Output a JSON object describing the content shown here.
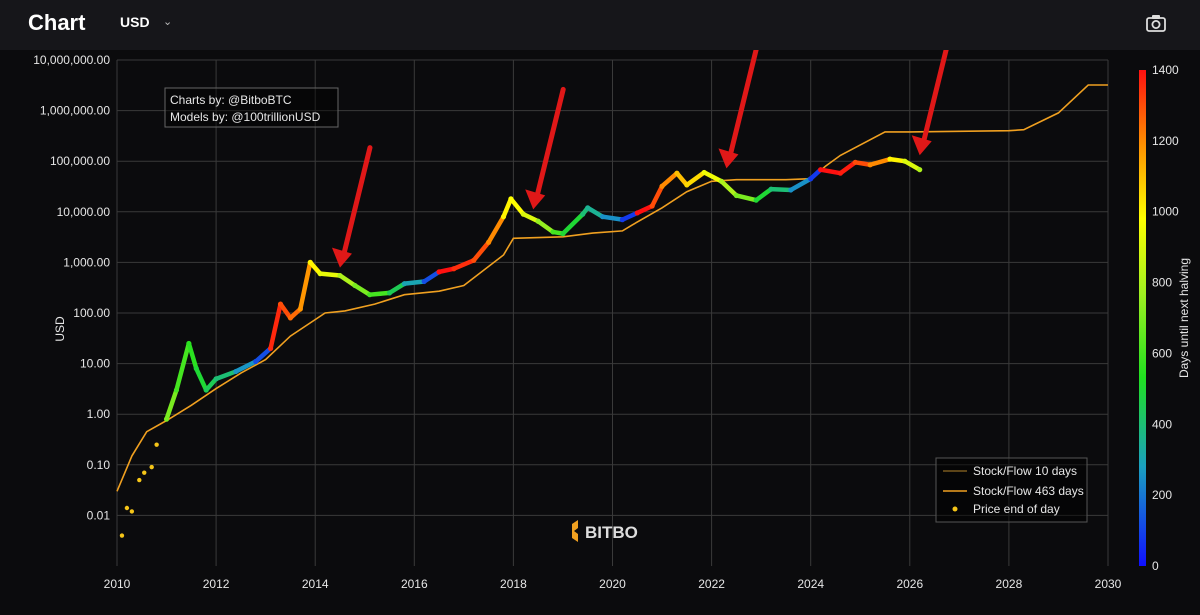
{
  "header": {
    "title": "Chart",
    "currency": "USD",
    "camera_icon": "camera-icon"
  },
  "chart_data": {
    "type": "scatter",
    "yscale": "log",
    "ylabel": "USD",
    "xlim": [
      2010,
      2030
    ],
    "ylim": [
      0.001,
      10000000
    ],
    "y_ticks": [
      "0.01",
      "0.10",
      "1.00",
      "10.00",
      "100.00",
      "1,000.00",
      "10,000.00",
      "100,000.00",
      "1,000,000.00",
      "10,000,000.00"
    ],
    "x_ticks": [
      "2010",
      "2012",
      "2014",
      "2016",
      "2018",
      "2020",
      "2022",
      "2024",
      "2026",
      "2028",
      "2030"
    ],
    "grid": true,
    "annotation": {
      "lines": [
        "Charts by: @BitboBTC",
        "Models by: @100trillionUSD"
      ]
    },
    "watermark": "BITBO",
    "colorbar": {
      "label": "Days until next halving",
      "range": [
        0,
        1400
      ],
      "ticks": [
        "0",
        "200",
        "400",
        "600",
        "800",
        "1000",
        "1200",
        "1400"
      ]
    },
    "legend": {
      "position": "bottom-right",
      "entries": [
        {
          "name": "Stock/Flow 10 days",
          "color": "#7a5a1e"
        },
        {
          "name": "Stock/Flow 463 days",
          "color": "#f0a020"
        },
        {
          "name": "Price end of day",
          "color": "#f5c518"
        }
      ]
    },
    "series": [
      {
        "name": "Stock/Flow 463 days",
        "color": "#f0a020",
        "x": [
          2010.0,
          2010.3,
          2010.6,
          2011.0,
          2011.5,
          2012.0,
          2012.5,
          2013.0,
          2013.5,
          2014.2,
          2014.6,
          2015.2,
          2015.8,
          2016.5,
          2017.0,
          2017.8,
          2018.0,
          2019.0,
          2019.6,
          2020.2,
          2020.4,
          2021.0,
          2021.5,
          2022.0,
          2022.5,
          2023.5,
          2024.0,
          2024.3,
          2024.6,
          2025.5,
          2026.0,
          2027.0,
          2028.0,
          2028.3,
          2029.0,
          2029.6,
          2030.0
        ],
        "y": [
          0.03,
          0.15,
          0.45,
          0.75,
          1.5,
          3.2,
          6.5,
          12,
          35,
          100,
          110,
          150,
          230,
          270,
          350,
          1400,
          3000,
          3200,
          3800,
          4200,
          5500,
          12000,
          25000,
          40000,
          43000,
          43000,
          45000,
          80000,
          130000,
          380000,
          380000,
          390000,
          400000,
          420000,
          900000,
          3200000,
          3200000
        ]
      },
      {
        "name": "Price end of day",
        "color_by": "days_until_next_halving",
        "x": [
          2010.1,
          2010.2,
          2010.3,
          2010.45,
          2010.55,
          2010.7,
          2010.8,
          2011.0,
          2011.2,
          2011.45,
          2011.6,
          2011.8,
          2012.0,
          2012.4,
          2012.8,
          2013.1,
          2013.3,
          2013.5,
          2013.7,
          2013.9,
          2014.1,
          2014.5,
          2014.8,
          2015.1,
          2015.5,
          2015.8,
          2016.2,
          2016.5,
          2016.8,
          2017.2,
          2017.5,
          2017.8,
          2017.95,
          2018.2,
          2018.5,
          2018.8,
          2019.0,
          2019.4,
          2019.5,
          2019.8,
          2020.2,
          2020.5,
          2020.8,
          2021.0,
          2021.3,
          2021.5,
          2021.85,
          2022.2,
          2022.5,
          2022.9,
          2023.2,
          2023.6,
          2024.0,
          2024.2,
          2024.6,
          2024.9,
          2025.2,
          2025.6,
          2025.9,
          2026.2
        ],
        "y": [
          0.004,
          0.014,
          0.012,
          0.05,
          0.07,
          0.09,
          0.25,
          0.8,
          3,
          25,
          8,
          3,
          5,
          7,
          11,
          20,
          150,
          80,
          120,
          1000,
          600,
          550,
          350,
          230,
          250,
          380,
          420,
          650,
          750,
          1100,
          2500,
          8000,
          18000,
          9000,
          6500,
          4000,
          3700,
          9000,
          12000,
          8000,
          7000,
          9500,
          13000,
          32000,
          58000,
          34000,
          60000,
          40000,
          21000,
          17000,
          28000,
          27000,
          45000,
          68000,
          58000,
          95000,
          85000,
          110000,
          100000,
          68000
        ],
        "c": [
          1000,
          960,
          920,
          880,
          850,
          800,
          780,
          700,
          600,
          550,
          500,
          450,
          400,
          260,
          120,
          1360,
          1300,
          1250,
          1180,
          1000,
          930,
          800,
          700,
          600,
          450,
          300,
          120,
          1400,
          1350,
          1300,
          1200,
          1000,
          980,
          900,
          750,
          600,
          500,
          400,
          350,
          250,
          80,
          1400,
          1300,
          1200,
          1100,
          1050,
          950,
          800,
          700,
          500,
          400,
          250,
          80,
          1420,
          1380,
          1300,
          1200,
          1000,
          900,
          800
        ]
      }
    ],
    "arrows": [
      {
        "x": 2014.5,
        "y": 600
      },
      {
        "x": 2018.4,
        "y": 8500
      },
      {
        "x": 2022.3,
        "y": 55000
      },
      {
        "x": 2026.2,
        "y": 100000
      }
    ]
  }
}
